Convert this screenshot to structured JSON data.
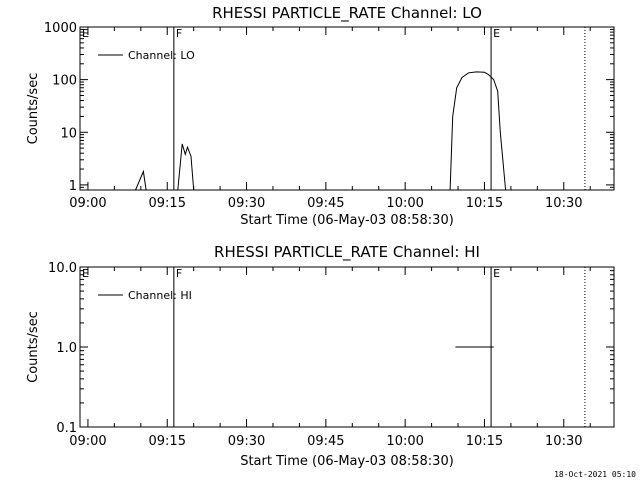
{
  "footer": {
    "timestamp": "18-Oct-2021 05:10"
  },
  "chart_data": [
    {
      "type": "line",
      "title": "RHESSI PARTICLE_RATE Channel: LO",
      "xlabel": "Start Time (06-May-03 08:58:30)",
      "ylabel": "Counts/sec",
      "yscale": "log",
      "xlim": [
        "08:58:30",
        "10:39:30"
      ],
      "ylim": [
        0.8,
        1000
      ],
      "x_ticks": [
        "09:00",
        "09:15",
        "09:30",
        "09:45",
        "10:00",
        "10:15",
        "10:30"
      ],
      "y_ticks": [
        {
          "value": 1,
          "label": "1"
        },
        {
          "value": 10,
          "label": "10"
        },
        {
          "value": 100,
          "label": "100"
        },
        {
          "value": 1000,
          "label": "1000"
        }
      ],
      "legend": {
        "position": "top-left",
        "entries": [
          "Channel: LO"
        ]
      },
      "markers": [
        {
          "time": "08:58:30",
          "label": "E",
          "style": "solid"
        },
        {
          "time": "09:16:15",
          "label": "F",
          "style": "solid"
        },
        {
          "time": "10:16:15",
          "label": "E",
          "style": "solid"
        },
        {
          "time": "10:34:00",
          "label": "",
          "style": "dotted"
        }
      ],
      "series": [
        {
          "points": [
            [
              "09:09:00",
              0.8
            ],
            [
              "09:10:30",
              1.8
            ],
            [
              "09:11:00",
              0.8
            ],
            [
              "09:17:00",
              0.8
            ],
            [
              "09:17:50",
              6.0
            ],
            [
              "09:18:25",
              3.8
            ],
            [
              "09:18:50",
              5.2
            ],
            [
              "09:19:30",
              3.5
            ],
            [
              "09:20:00",
              0.8
            ],
            [
              "10:08:30",
              0.8
            ],
            [
              "10:09:00",
              20
            ],
            [
              "10:09:45",
              70
            ],
            [
              "10:10:45",
              110
            ],
            [
              "10:12:00",
              135
            ],
            [
              "10:13:30",
              140
            ],
            [
              "10:15:00",
              138
            ],
            [
              "10:15:45",
              125
            ],
            [
              "10:16:45",
              100
            ],
            [
              "10:17:30",
              60
            ],
            [
              "10:18:00",
              10
            ],
            [
              "10:19:00",
              0.8
            ]
          ]
        }
      ]
    },
    {
      "type": "line",
      "title": "RHESSI PARTICLE_RATE Channel: HI",
      "xlabel": "Start Time (06-May-03 08:58:30)",
      "ylabel": "Counts/sec",
      "yscale": "log",
      "xlim": [
        "08:58:30",
        "10:39:30"
      ],
      "ylim": [
        0.1,
        10
      ],
      "x_ticks": [
        "09:00",
        "09:15",
        "09:30",
        "09:45",
        "10:00",
        "10:15",
        "10:30"
      ],
      "y_ticks": [
        {
          "value": 0.1,
          "label": "0.1"
        },
        {
          "value": 1,
          "label": "1.0"
        },
        {
          "value": 10,
          "label": "10.0"
        }
      ],
      "legend": {
        "position": "top-left",
        "entries": [
          "Channel: HI"
        ]
      },
      "markers": [
        {
          "time": "08:58:30",
          "label": "E",
          "style": "solid"
        },
        {
          "time": "09:16:15",
          "label": "F",
          "style": "solid"
        },
        {
          "time": "10:16:15",
          "label": "E",
          "style": "solid"
        },
        {
          "time": "10:34:00",
          "label": "",
          "style": "dotted"
        }
      ],
      "series": [
        {
          "points": [
            [
              "10:09:30",
              1.0
            ],
            [
              "10:16:45",
              1.0
            ]
          ]
        }
      ]
    }
  ]
}
